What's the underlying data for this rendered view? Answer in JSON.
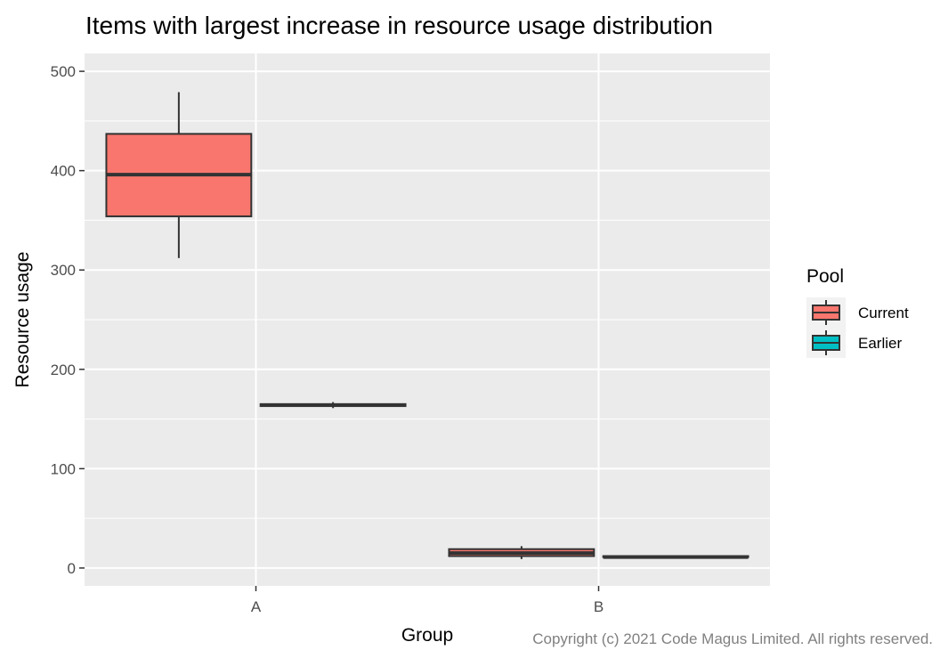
{
  "chart_data": {
    "type": "boxplot",
    "title": "Items with largest increase in resource usage distribution",
    "xlabel": "Group",
    "ylabel": "Resource usage",
    "categories": [
      "A",
      "B"
    ],
    "y_ticks": [
      0,
      100,
      200,
      300,
      400,
      500
    ],
    "ylim": [
      -18,
      518
    ],
    "grid": true,
    "legend": {
      "title": "Pool",
      "position": "right",
      "entries": [
        {
          "name": "Current",
          "color": "#F8766D"
        },
        {
          "name": "Earlier",
          "color": "#00BFC4"
        }
      ]
    },
    "series": [
      {
        "name": "Current",
        "color": "#F8766D",
        "boxes": [
          {
            "category": "A",
            "min": 312,
            "q1": 354,
            "median": 396,
            "q3": 437,
            "max": 479
          },
          {
            "category": "B",
            "min": 9,
            "q1": 12,
            "median": 15,
            "q3": 19,
            "max": 22
          }
        ]
      },
      {
        "name": "Earlier",
        "color": "#00BFC4",
        "boxes": [
          {
            "category": "A",
            "min": 161,
            "q1": 163,
            "median": 164,
            "q3": 165,
            "max": 167
          },
          {
            "category": "B",
            "min": 10,
            "q1": 11,
            "median": 11,
            "q3": 12,
            "max": 12
          }
        ]
      }
    ],
    "caption": "Copyright (c) 2021 Code Magus Limited. All rights reserved."
  }
}
